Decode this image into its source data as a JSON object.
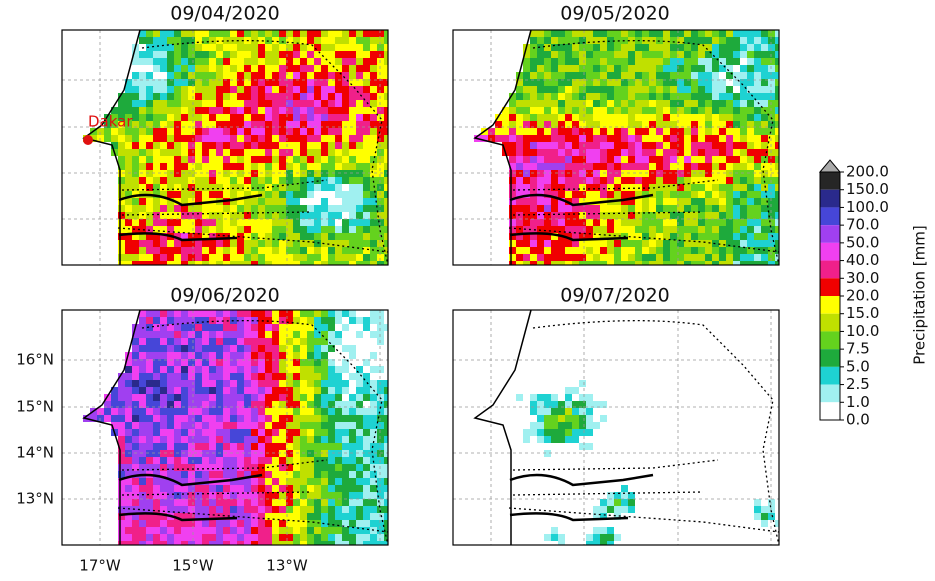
{
  "panels": [
    {
      "title": "09/04/2020"
    },
    {
      "title": "09/05/2020"
    },
    {
      "title": "09/06/2020"
    },
    {
      "title": "09/07/2020"
    }
  ],
  "annotation": "Dakar",
  "lat_labels": [
    "16°N",
    "15°N",
    "14°N",
    "13°N"
  ],
  "lon_labels": [
    "17°W",
    "15°W",
    "13°W"
  ],
  "colorbar": {
    "label": "Precipitation [mm]",
    "ticks": [
      "200.0",
      "150.0",
      "100.0",
      "70.0",
      "50.0",
      "40.0",
      "30.0",
      "20.0",
      "15.0",
      "10.0",
      "7.5",
      "5.0",
      "2.5",
      "1.0",
      "0.0"
    ],
    "colors": [
      "#262626",
      "#2a2a8c",
      "#4646d8",
      "#a040f0",
      "#f040f0",
      "#f0208a",
      "#f00000",
      "#ffff00",
      "#c0e000",
      "#64d21e",
      "#1eaa3c",
      "#1ed2d2",
      "#a0f0f0",
      "#ffffff"
    ]
  }
}
